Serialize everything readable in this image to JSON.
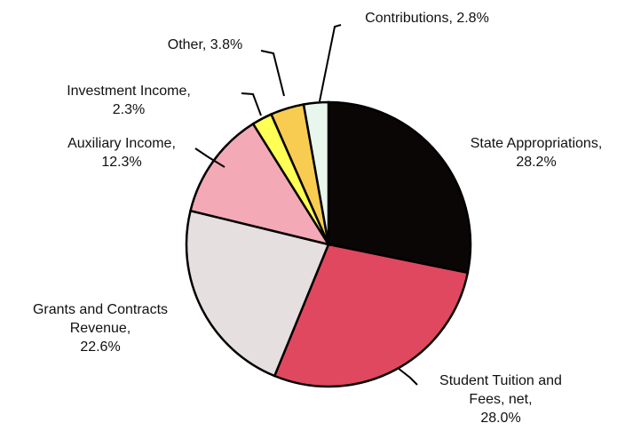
{
  "chart_data": {
    "type": "pie",
    "title": "",
    "start_angle_deg": 0,
    "direction": "clockwise",
    "slices": [
      {
        "label": [
          "State Appropriations,",
          "28.2%"
        ],
        "value": 28.2,
        "color": "#0b0606"
      },
      {
        "label": [
          "Student Tuition and",
          "Fees, net,",
          "28.0%"
        ],
        "value": 28.0,
        "color": "#e0485f"
      },
      {
        "label": [
          "Grants and Contracts",
          "Revenue,",
          "22.6%"
        ],
        "value": 22.6,
        "color": "#e6dfe0"
      },
      {
        "label": [
          "Auxiliary Income,",
          "12.3%"
        ],
        "value": 12.3,
        "color": "#f4a9b6"
      },
      {
        "label": [
          "Investment Income,",
          "2.3%"
        ],
        "value": 2.3,
        "color": "#ffff55"
      },
      {
        "label": [
          "Other, 3.8%"
        ],
        "value": 3.8,
        "color": "#f8cc50"
      },
      {
        "label": [
          "Contributions, 2.8%"
        ],
        "value": 2.8,
        "color": "#e8f6ee"
      }
    ]
  }
}
